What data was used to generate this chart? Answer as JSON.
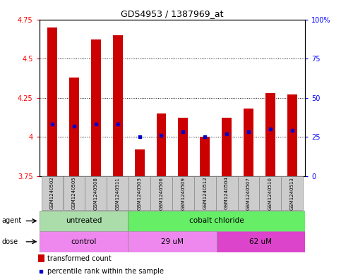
{
  "title": "GDS4953 / 1387969_at",
  "samples": [
    "GSM1240502",
    "GSM1240505",
    "GSM1240508",
    "GSM1240511",
    "GSM1240503",
    "GSM1240506",
    "GSM1240509",
    "GSM1240512",
    "GSM1240504",
    "GSM1240507",
    "GSM1240510",
    "GSM1240513"
  ],
  "bar_values": [
    4.7,
    4.38,
    4.62,
    4.65,
    3.92,
    4.15,
    4.12,
    4.0,
    4.12,
    4.18,
    4.28,
    4.27
  ],
  "blue_dot_values": [
    4.08,
    4.07,
    4.08,
    4.08,
    4.0,
    4.01,
    4.03,
    4.0,
    4.02,
    4.03,
    4.05,
    4.04
  ],
  "bar_bottom": 3.75,
  "ylim_min": 3.75,
  "ylim_max": 4.75,
  "yticks_left": [
    3.75,
    4.0,
    4.25,
    4.5,
    4.75
  ],
  "ytick_left_labels": [
    "3.75",
    "4",
    "4.25",
    "4.5",
    "4.75"
  ],
  "yticks_right_vals": [
    0,
    25,
    50,
    75,
    100
  ],
  "ytick_right_labels": [
    "0",
    "25",
    "50",
    "75",
    "100%"
  ],
  "bar_color": "#cc0000",
  "blue_dot_color": "#0000cc",
  "agent_groups": [
    {
      "label": "untreated",
      "start": 0,
      "end": 4,
      "color": "#aaddaa"
    },
    {
      "label": "cobalt chloride",
      "start": 4,
      "end": 12,
      "color": "#66ee66"
    }
  ],
  "dose_groups": [
    {
      "label": "control",
      "start": 0,
      "end": 4,
      "color": "#ee88ee"
    },
    {
      "label": "29 uM",
      "start": 4,
      "end": 8,
      "color": "#ee88ee"
    },
    {
      "label": "62 uM",
      "start": 8,
      "end": 12,
      "color": "#dd44cc"
    }
  ],
  "legend_bar_label": "transformed count",
  "legend_dot_label": "percentile rank within the sample",
  "label_area_color": "#cccccc",
  "arrow_color": "#555555"
}
